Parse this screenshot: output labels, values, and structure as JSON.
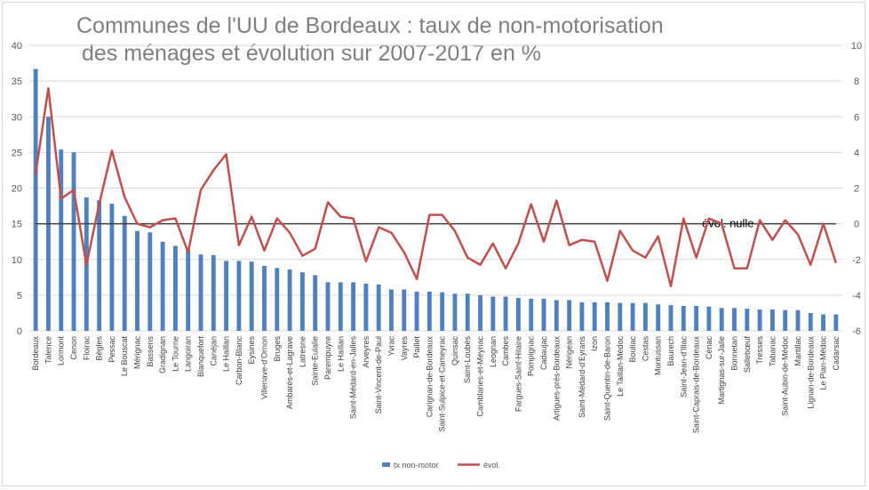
{
  "chart_data": {
    "type": "bar",
    "title_lines": [
      "Communes de l'UU de Bordeaux : taux de non-motorisation",
      "des ménages et évolution sur 2007-2017 en %"
    ],
    "categories": [
      "Bordeaux",
      "Talence",
      "Lormont",
      "Cenon",
      "Floirac",
      "Bègles",
      "Pessac",
      "Le Bouscat",
      "Mérignac",
      "Bassens",
      "Gradignan",
      "Le Tourne",
      "Langoiran",
      "Blanquefort",
      "Canéjan",
      "Le Haillan",
      "Carbon-Blanc",
      "Eysines",
      "Villenave-d'Ornon",
      "Bruges",
      "Ambarès-et-Lagrave",
      "Latresne",
      "Sainte-Eulalie",
      "Parempuyre",
      "Le Haillan",
      "Saint-Médard-en-Jalles",
      "Arveyres",
      "Saint-Vincent-de-Paul",
      "Yvrac",
      "Vayres",
      "Paillet",
      "Carignan-de-Bordeaux",
      "Saint-Sulpice-et-Cameyrac",
      "Quinsac",
      "Saint-Loubès",
      "Camblanes-et-Meynac",
      "Léognan",
      "Cambes",
      "Fargues-Saint-Hilaire",
      "Pompignac",
      "Cadaujac",
      "Artigues-près-Bordeaux",
      "Nérigean",
      "Saint-Médard-d'Eyrans",
      "Izon",
      "Saint-Quentin-de-Baron",
      "Le Taillan-Médoc",
      "Bouliac",
      "Cestas",
      "Montussan",
      "Baurech",
      "Saint-Jean-d'Illac",
      "Saint-Caprais-de-Bordeaux",
      "Cénac",
      "Martignas-sur-Jalle",
      "Bonnetan",
      "Sallebœuf",
      "Tresses",
      "Tabanac",
      "Saint-Aubin-de-Médoc",
      "Martillac",
      "Lignan-de-Bordeaux",
      "Le Pian-Médoc",
      "Cadarsac"
    ],
    "category_display_override": {
      "15": "Le Haillan"
    },
    "series": [
      {
        "name": "tx non-motor",
        "kind": "bar",
        "axis": "left",
        "color": "#4f81bd",
        "values": [
          36.7,
          30.0,
          25.4,
          25.0,
          18.7,
          18.3,
          17.8,
          16.1,
          14.0,
          13.8,
          12.5,
          11.9,
          11.4,
          10.7,
          10.6,
          9.8,
          9.8,
          9.7,
          9.1,
          8.8,
          8.6,
          8.2,
          7.8,
          6.8,
          6.8,
          6.8,
          6.6,
          6.5,
          5.8,
          5.8,
          5.5,
          5.5,
          5.4,
          5.2,
          5.2,
          5.0,
          4.8,
          4.8,
          4.6,
          4.5,
          4.5,
          4.3,
          4.3,
          4.0,
          4.0,
          4.0,
          3.9,
          3.9,
          3.9,
          3.7,
          3.6,
          3.5,
          3.5,
          3.4,
          3.2,
          3.2,
          3.1,
          3.0,
          3.0,
          2.9,
          2.9,
          2.5,
          2.3,
          2.3
        ]
      },
      {
        "name": "évol.",
        "kind": "line",
        "axis": "right",
        "color": "#c0504d",
        "values": [
          2.8,
          7.6,
          1.4,
          1.9,
          -2.3,
          1.1,
          4.1,
          1.5,
          0.0,
          -0.2,
          0.2,
          0.3,
          -1.6,
          1.9,
          3.0,
          3.9,
          -1.2,
          0.4,
          -1.5,
          0.3,
          -0.5,
          -1.8,
          -1.4,
          1.2,
          0.4,
          0.3,
          -2.1,
          -0.2,
          -0.5,
          -1.6,
          -3.1,
          0.5,
          0.5,
          -0.4,
          -1.9,
          -2.3,
          -1.1,
          -2.5,
          -1.1,
          1.1,
          -1.0,
          1.3,
          -1.2,
          -0.9,
          -1.0,
          -3.2,
          -0.4,
          -1.5,
          -1.9,
          -0.7,
          -3.5,
          0.3,
          -1.9,
          0.3,
          0.0,
          -2.5,
          -2.5,
          0.2,
          -0.9,
          0.2,
          -0.6,
          -2.3,
          0.0,
          -2.2
        ]
      }
    ],
    "ylim_left": [
      0,
      40
    ],
    "yticks_left": [
      "0",
      "5",
      "10",
      "15",
      "20",
      "25",
      "30",
      "35",
      "40"
    ],
    "ylim_right": [
      -6,
      10
    ],
    "yticks_right": [
      "-6",
      "-4",
      "-2",
      "0",
      "2",
      "4",
      "6",
      "8",
      "10"
    ],
    "reference_line": {
      "value": 0,
      "axis": "right",
      "label": "évol. nulle"
    },
    "grid": true,
    "legend_position": "bottom"
  }
}
